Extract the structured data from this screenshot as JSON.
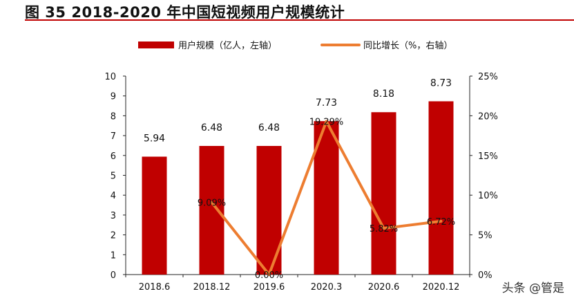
{
  "title": "图 35 2018-2020 年中国短视频用户规模统计",
  "watermark": "头条 @管是",
  "colors": {
    "bar": "#c00000",
    "line": "#ed7d31",
    "rule": "#c00000"
  },
  "chart_data": {
    "type": "bar+line",
    "title": "图 35 2018-2020 年中国短视频用户规模统计",
    "categories": [
      "2018.6",
      "2018.12",
      "2019.6",
      "2020.3",
      "2020.6",
      "2020.12"
    ],
    "series": [
      {
        "name": "用户规模（亿人，左轴）",
        "type": "bar",
        "axis": "left",
        "values": [
          5.94,
          6.48,
          6.48,
          7.73,
          8.18,
          8.73
        ],
        "labels": [
          "5.94",
          "6.48",
          "6.48",
          "7.73",
          "8.18",
          "8.73"
        ]
      },
      {
        "name": "同比增长（%，右轴）",
        "type": "line",
        "axis": "right",
        "values": [
          null,
          9.09,
          0.0,
          19.29,
          5.82,
          6.72
        ],
        "labels": [
          "",
          "9.09%",
          "0.00%",
          "19.29%",
          "5.82%",
          "6.72%"
        ]
      }
    ],
    "left_axis": {
      "range": [
        0,
        10
      ],
      "ticks": [
        "0",
        "1",
        "2",
        "3",
        "4",
        "5",
        "6",
        "7",
        "8",
        "9",
        "10"
      ]
    },
    "right_axis": {
      "range": [
        0,
        25
      ],
      "ticks": [
        "0%",
        "5%",
        "10%",
        "15%",
        "20%",
        "25%"
      ]
    },
    "legend": "top",
    "grid": false
  }
}
